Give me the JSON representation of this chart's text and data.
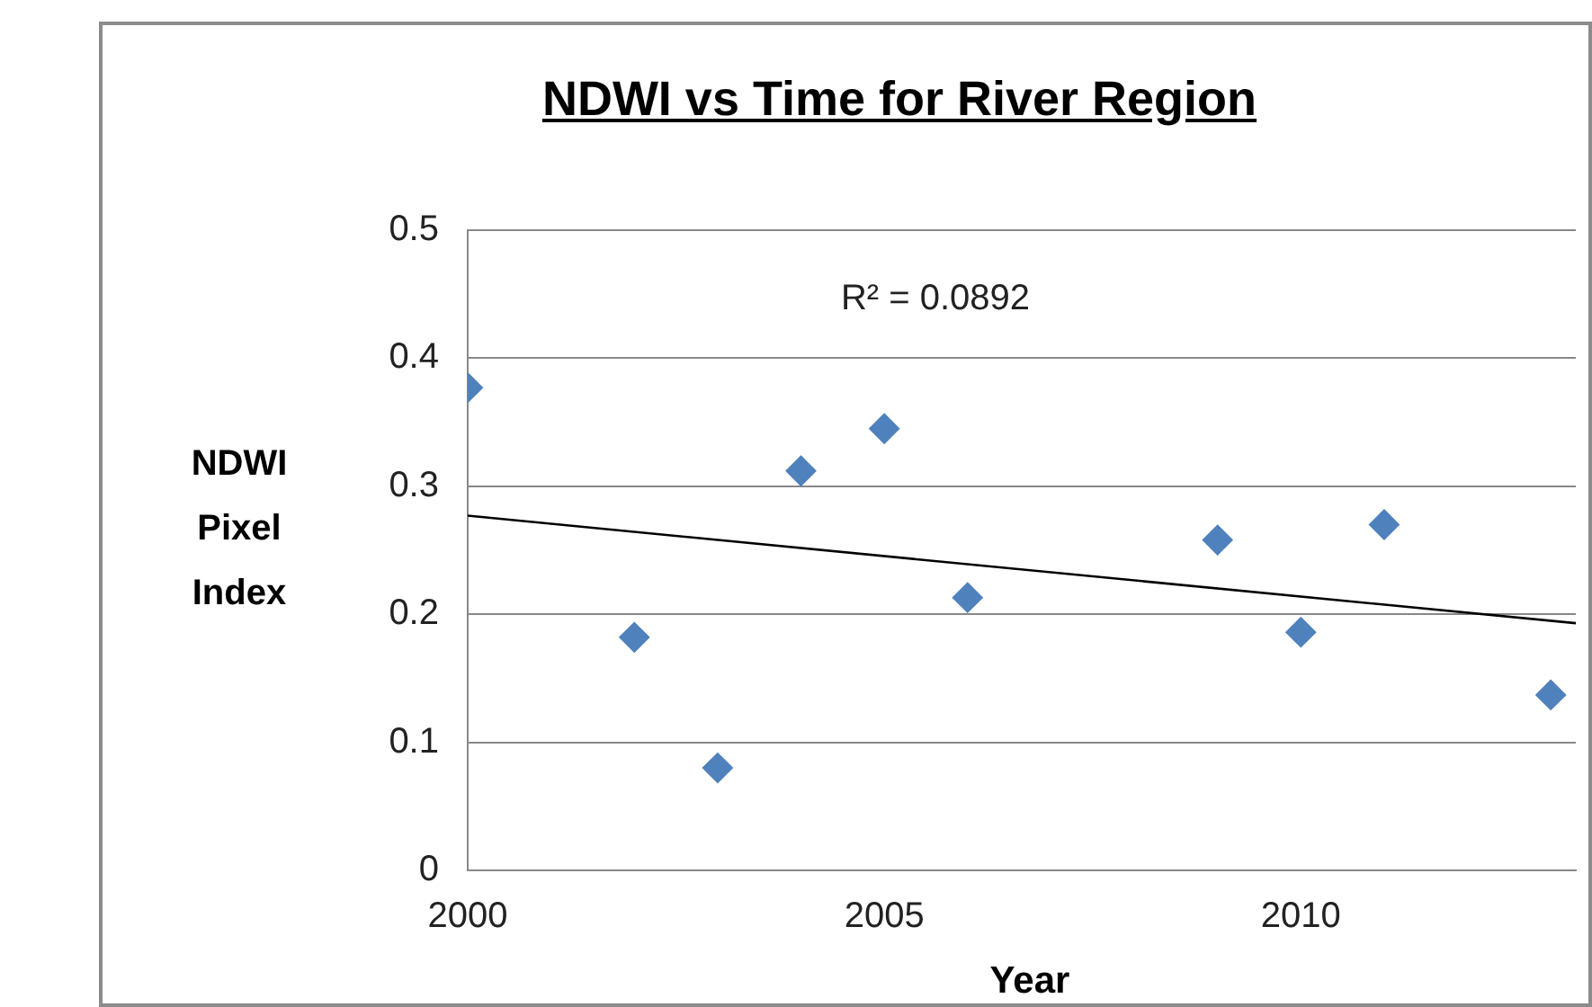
{
  "chart_data": {
    "type": "scatter",
    "title": "NDWI vs Time for River Region",
    "xlabel": "Year",
    "ylabel": "NDWI Pixel Index",
    "xlim": [
      2000,
      2013.3
    ],
    "xticks": [
      2000,
      2005,
      2010
    ],
    "ylim": [
      0,
      0.5
    ],
    "yticks": [
      0,
      0.1,
      0.2,
      0.3,
      0.4,
      0.5
    ],
    "grid": "y",
    "legend": false,
    "marker": "diamond",
    "series": [
      {
        "type": "scatter",
        "color": "#4f81bd",
        "x": [
          2000,
          2002,
          2003,
          2004,
          2005,
          2006,
          2009,
          2010,
          2011,
          2013
        ],
        "values": [
          0.377,
          0.182,
          0.08,
          0.312,
          0.345,
          0.213,
          0.258,
          0.186,
          0.27,
          0.137
        ]
      },
      {
        "type": "line",
        "marker": "none",
        "color": "#000000",
        "x": [
          2000,
          2013.3
        ],
        "values": [
          0.277,
          0.193
        ]
      }
    ],
    "annotations": [
      "R² = 0.0892"
    ]
  }
}
